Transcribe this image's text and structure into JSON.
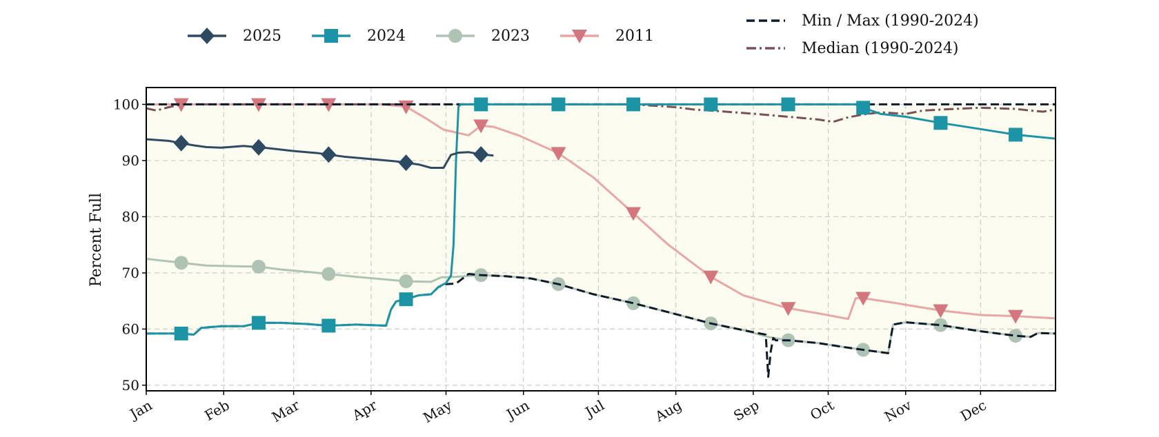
{
  "chart_data": {
    "type": "line",
    "title": "",
    "xlabel": "",
    "ylabel": "Percent Full",
    "ylim": [
      49,
      103
    ],
    "yticks": [
      50,
      60,
      70,
      80,
      90,
      100
    ],
    "xlim": [
      1,
      365
    ],
    "month_ticks": [
      {
        "label": "Jan",
        "day": 1
      },
      {
        "label": "Feb",
        "day": 32
      },
      {
        "label": "Mar",
        "day": 60
      },
      {
        "label": "Apr",
        "day": 91
      },
      {
        "label": "May",
        "day": 121
      },
      {
        "label": "Jun",
        "day": 152
      },
      {
        "label": "Jul",
        "day": 182
      },
      {
        "label": "Aug",
        "day": 213
      },
      {
        "label": "Sep",
        "day": 244
      },
      {
        "label": "Oct",
        "day": 274
      },
      {
        "label": "Nov",
        "day": 305
      },
      {
        "label": "Dec",
        "day": 335
      }
    ],
    "grid": true,
    "legend_position": "top",
    "band_color": "#fbfbf0",
    "series": [
      {
        "name": "2025",
        "color": "#2e4a62",
        "marker": "diamond",
        "style": "solid",
        "marker_days": [
          15,
          46,
          74,
          105,
          135
        ],
        "x": [
          1,
          10,
          20,
          25,
          31,
          40,
          50,
          60,
          70,
          80,
          90,
          100,
          110,
          115,
          120,
          123,
          126,
          130,
          135,
          140
        ],
        "y": [
          93.8,
          93.5,
          92.7,
          92.4,
          92.3,
          92.6,
          92.2,
          91.7,
          91.3,
          90.7,
          90.3,
          89.9,
          89.3,
          88.7,
          88.7,
          91.0,
          91.4,
          91.5,
          91.1,
          90.9
        ]
      },
      {
        "name": "2024",
        "color": "#1d94a6",
        "marker": "square",
        "style": "solid",
        "marker_days": [
          15,
          46,
          74,
          105,
          135,
          166,
          196,
          227,
          258,
          288,
          319,
          349
        ],
        "x": [
          1,
          15,
          20,
          23,
          31,
          40,
          46,
          55,
          65,
          74,
          85,
          97,
          99,
          101,
          105,
          110,
          115,
          118,
          121,
          123,
          124,
          125,
          126,
          127,
          128,
          130,
          135,
          166,
          196,
          227,
          258,
          285,
          288,
          295,
          305,
          319,
          335,
          349,
          365
        ],
        "y": [
          59.2,
          59.2,
          59.0,
          60.2,
          60.5,
          60.5,
          61.1,
          61.1,
          60.9,
          60.6,
          60.8,
          60.6,
          63.5,
          64.9,
          65.3,
          66.0,
          66.2,
          67.5,
          68.2,
          69.5,
          75,
          90,
          99.6,
          100,
          100,
          100,
          100,
          100,
          100,
          100,
          100,
          100,
          99.4,
          98.3,
          97.8,
          96.7,
          95.6,
          94.6,
          93.9
        ]
      },
      {
        "name": "2023",
        "color": "#aec3b4",
        "marker": "circle",
        "style": "solid",
        "marker_days": [
          15,
          46,
          74,
          105,
          135,
          166,
          196,
          227,
          258,
          288,
          319,
          349
        ],
        "x": [
          1,
          15,
          25,
          35,
          46,
          55,
          65,
          74,
          85,
          95,
          105,
          115,
          119,
          125,
          135,
          145,
          155,
          166,
          180,
          196,
          210,
          227,
          240,
          250,
          258,
          270,
          280,
          288,
          298,
          300,
          305,
          319,
          335,
          349,
          355,
          358,
          365
        ],
        "y": [
          72.5,
          71.8,
          71.3,
          71.2,
          71.1,
          70.6,
          70.2,
          69.8,
          69.3,
          68.9,
          68.5,
          68.4,
          69.2,
          69.3,
          69.6,
          69.4,
          69.0,
          68.0,
          66.2,
          64.6,
          63.0,
          61.0,
          59.8,
          58.6,
          58.0,
          57.5,
          56.8,
          56.3,
          55.7,
          60.8,
          61.2,
          60.7,
          59.6,
          58.8,
          58.6,
          59.3,
          59.2
        ]
      },
      {
        "name": "2011",
        "color": "#d4767d",
        "line_color": "#e8a7a4",
        "marker": "triangle-down",
        "style": "solid",
        "marker_days": [
          15,
          46,
          74,
          105,
          135,
          166,
          196,
          227,
          258,
          288,
          319,
          349
        ],
        "x": [
          1,
          15,
          46,
          74,
          95,
          105,
          113,
          120,
          130,
          135,
          140,
          150,
          166,
          180,
          196,
          210,
          227,
          240,
          258,
          270,
          282,
          285,
          288,
          300,
          319,
          335,
          349,
          365
        ],
        "y": [
          100,
          100,
          100,
          100,
          100,
          99.6,
          97.5,
          95.5,
          94.5,
          96.2,
          96.0,
          94.5,
          91.3,
          87.0,
          80.6,
          75.0,
          69.3,
          66.0,
          63.7,
          62.8,
          61.8,
          65.5,
          65.5,
          64.7,
          63.3,
          62.5,
          62.3,
          61.9
        ]
      },
      {
        "name": "Min / Max (1990-2024)",
        "color": "#0e1b2a",
        "style": "dashed",
        "segments": [
          {
            "x": [
              1,
              365
            ],
            "y": [
              100,
              100
            ]
          },
          {
            "x": [
              1,
              15,
              20,
              23,
              31,
              40,
              46,
              55,
              65,
              74,
              85,
              97,
              99,
              101,
              105,
              110,
              115,
              118,
              121,
              125,
              130,
              135,
              145,
              155,
              166,
              180,
              196,
              210,
              227,
              240,
              249,
              250,
              251,
              252,
              253,
              258,
              270,
              280,
              288,
              298,
              300,
              305,
              319,
              335,
              349,
              355,
              358,
              365
            ],
            "y": [
              59.2,
              59.2,
              59.0,
              60.2,
              60.5,
              60.5,
              61.1,
              61.1,
              60.9,
              60.6,
              60.8,
              60.6,
              63.5,
              64.9,
              65.3,
              66.0,
              66.2,
              67.5,
              68.0,
              68.1,
              69.8,
              69.6,
              69.4,
              69.0,
              68.0,
              66.2,
              64.6,
              63.0,
              61.0,
              59.8,
              59.0,
              51.5,
              56.0,
              58.4,
              58.0,
              58.0,
              57.5,
              56.8,
              56.3,
              55.7,
              60.8,
              61.2,
              60.7,
              59.6,
              58.8,
              58.6,
              59.3,
              59.2
            ]
          }
        ]
      },
      {
        "name": "Median (1990-2024)",
        "color": "#7a5058",
        "style": "dashdot",
        "x": [
          1,
          5,
          10,
          15,
          46,
          74,
          105,
          135,
          166,
          196,
          213,
          220,
          230,
          245,
          258,
          270,
          276,
          282,
          288,
          295,
          305,
          312,
          320,
          335,
          349,
          355,
          360,
          365
        ],
        "y": [
          99.3,
          98.9,
          99.5,
          100,
          100,
          100,
          100,
          100,
          100,
          100,
          99.5,
          99.1,
          98.8,
          98.3,
          97.8,
          97.3,
          96.9,
          97.7,
          98.2,
          98.6,
          98.3,
          98.9,
          99.1,
          99.4,
          99.2,
          98.9,
          98.7,
          99.1
        ]
      }
    ]
  }
}
